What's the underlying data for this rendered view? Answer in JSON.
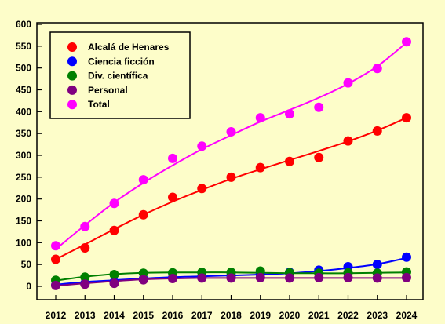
{
  "chart_data": {
    "type": "scatter",
    "title": "",
    "xlabel": "",
    "ylabel": "",
    "x": [
      2012,
      2013,
      2014,
      2015,
      2016,
      2017,
      2018,
      2019,
      2020,
      2021,
      2022,
      2023,
      2024
    ],
    "xlim": [
      2012,
      2024
    ],
    "ylim": [
      0,
      600
    ],
    "yticks": [
      0,
      50,
      100,
      150,
      200,
      250,
      300,
      350,
      400,
      450,
      500,
      550,
      600
    ],
    "grid": false,
    "legend_position": "top-left",
    "background": "#fdfdc9",
    "series": [
      {
        "name": "Alcalá de Henares",
        "color": "#ff0000",
        "values": [
          62,
          88,
          128,
          164,
          204,
          224,
          250,
          272,
          286,
          295,
          333,
          356,
          386
        ],
        "fit": [
          62,
          96,
          131,
          164,
          194,
          221,
          246,
          268,
          289,
          310,
          332,
          357,
          386
        ]
      },
      {
        "name": "Ciencia ficción",
        "color": "#0000ff",
        "values": [
          3,
          7,
          10,
          17,
          20,
          22,
          25,
          28,
          32,
          37,
          45,
          50,
          67
        ],
        "fit": [
          4,
          10,
          14,
          18,
          21,
          23,
          25,
          27,
          30,
          35,
          42,
          51,
          65
        ]
      },
      {
        "name": "Div. científica",
        "color": "#008000",
        "values": [
          14,
          21,
          27,
          30,
          31,
          32,
          32,
          35,
          31,
          30,
          31,
          30,
          33
        ],
        "fit": [
          13,
          22,
          28,
          31,
          32,
          32,
          32,
          31,
          30,
          30,
          30,
          31,
          32
        ]
      },
      {
        "name": "Personal",
        "color": "#800080",
        "values": [
          2,
          5,
          7,
          15,
          18,
          19,
          19,
          20,
          19,
          20,
          20,
          19,
          20
        ],
        "fit": [
          1,
          7,
          12,
          16,
          18,
          19,
          19,
          19,
          19,
          19,
          19,
          19,
          19
        ]
      },
      {
        "name": "Total",
        "color": "#ff00ff",
        "values": [
          93,
          137,
          190,
          244,
          293,
          321,
          354,
          386,
          395,
          410,
          466,
          499,
          560
        ],
        "fit": [
          85,
          140,
          192,
          237,
          277,
          314,
          346,
          377,
          404,
          432,
          464,
          504,
          558
        ]
      }
    ]
  }
}
